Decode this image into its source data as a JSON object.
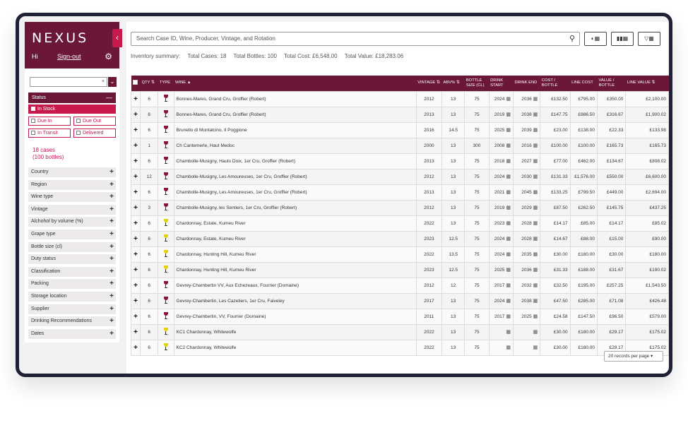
{
  "app": {
    "logo": "NEXUS",
    "greeting": "Hi",
    "signout": "Sign-out"
  },
  "sidebar": {
    "status_label": "Status",
    "status_options": [
      {
        "label": "In Stock",
        "checked": true
      },
      {
        "label": "Due In",
        "checked": false
      },
      {
        "label": "Due Out",
        "checked": false
      },
      {
        "label": "In Transit",
        "checked": false
      },
      {
        "label": "Delivered",
        "checked": false
      }
    ],
    "cases_count": "18 cases",
    "bottles_count": "(100 bottles)",
    "filters": [
      "Country",
      "Region",
      "Wine type",
      "Vintage",
      "Alchohol by volume (%)",
      "Grape type",
      "Bottle size (cl)",
      "Duty status",
      "Classification",
      "Packing",
      "Storage location",
      "Supplier",
      "Drinking Recommendations",
      "Dates"
    ]
  },
  "search": {
    "placeholder": "Search Case ID, Wine, Producer, Vintage, and Rotation"
  },
  "inventory": {
    "label": "Inventory summary:",
    "total_cases": "Total Cases: 18",
    "total_bottles": "Total Bottles: 100",
    "total_cost": "Total Cost: £6,548.00",
    "total_value": "Total Value: £18,283.06"
  },
  "table": {
    "headers": [
      "QTY",
      "TYPE",
      "WINE",
      "VINTAGE",
      "ABV%",
      "BOTTLE SIZE (CL)",
      "DRINK START",
      "DRINK END",
      "COST / BOTTLE",
      "LINE COST",
      "VALUE / BOTTLE",
      "LINE VALUE"
    ],
    "rows": [
      {
        "qty": "6",
        "type": "red",
        "wine": "Bonnes-Mares, Grand Cru, Groffier (Robert)",
        "vintage": "2012",
        "abv": "13",
        "size": "75",
        "start": "2024",
        "end": "2036",
        "cost": "£132.50",
        "line_cost": "£795.00",
        "value": "£350.00",
        "line_value": "£2,100.00"
      },
      {
        "qty": "6",
        "type": "red",
        "wine": "Bonnes-Mares, Grand Cru, Groffier (Robert)",
        "vintage": "2013",
        "abv": "13",
        "size": "75",
        "start": "2019",
        "end": "2038",
        "cost": "£147.75",
        "line_cost": "£886.50",
        "value": "£316.67",
        "line_value": "£1,900.02"
      },
      {
        "qty": "6",
        "type": "red",
        "wine": "Brunello di Montalcino, Il Poggione",
        "vintage": "2016",
        "abv": "14.5",
        "size": "75",
        "start": "2025",
        "end": "2039",
        "cost": "£23.00",
        "line_cost": "£138.00",
        "value": "£22.33",
        "line_value": "£133.98"
      },
      {
        "qty": "1",
        "type": "red",
        "wine": "Ch Cantemerle, Haut Medoc",
        "vintage": "2000",
        "abv": "13",
        "size": "300",
        "start": "2008",
        "end": "2016",
        "cost": "£100.00",
        "line_cost": "£100.00",
        "value": "£165.73",
        "line_value": "£165.73"
      },
      {
        "qty": "6",
        "type": "red",
        "wine": "Chambolle-Musigny, Hauts Doix, 1er Cru, Groffier (Robert)",
        "vintage": "2013",
        "abv": "13",
        "size": "75",
        "start": "2018",
        "end": "2027",
        "cost": "£77.00",
        "line_cost": "£462.00",
        "value": "£134.67",
        "line_value": "£808.02"
      },
      {
        "qty": "12",
        "type": "red",
        "wine": "Chambolle-Musigny, Les Amoureuses, 1er Cru, Groffier (Robert)",
        "vintage": "2012",
        "abv": "13",
        "size": "75",
        "start": "2024",
        "end": "2030",
        "cost": "£131.33",
        "line_cost": "£1,576.00",
        "value": "£550.00",
        "line_value": "£6,600.00"
      },
      {
        "qty": "6",
        "type": "red",
        "wine": "Chambolle-Musigny, Les Amoureuses, 1er Cru, Groffier (Robert)",
        "vintage": "2013",
        "abv": "13",
        "size": "75",
        "start": "2021",
        "end": "2045",
        "cost": "£133.25",
        "line_cost": "£799.50",
        "value": "£449.00",
        "line_value": "£2,694.00"
      },
      {
        "qty": "3",
        "type": "red",
        "wine": "Chambolle-Musigny, les Sentiers, 1er Cru, Groffier (Robert)",
        "vintage": "2012",
        "abv": "13",
        "size": "75",
        "start": "2019",
        "end": "2029",
        "cost": "£87.50",
        "line_cost": "£262.50",
        "value": "£145.75",
        "line_value": "£437.25"
      },
      {
        "qty": "6",
        "type": "white",
        "wine": "Chardonnay, Estate, Kumeu River",
        "vintage": "2022",
        "abv": "13",
        "size": "75",
        "start": "2023",
        "end": "2028",
        "cost": "£14.17",
        "line_cost": "£85.00",
        "value": "£14.17",
        "line_value": "£85.02"
      },
      {
        "qty": "6",
        "type": "white",
        "wine": "Chardonnay, Estate, Kumeu River",
        "vintage": "2023",
        "abv": "12.5",
        "size": "75",
        "start": "2024",
        "end": "2028",
        "cost": "£14.67",
        "line_cost": "£88.00",
        "value": "£15.00",
        "line_value": "£90.00"
      },
      {
        "qty": "6",
        "type": "white",
        "wine": "Chardonnay, Hunting Hill, Kumeu River",
        "vintage": "2022",
        "abv": "13.5",
        "size": "75",
        "start": "2024",
        "end": "2035",
        "cost": "£30.00",
        "line_cost": "£180.00",
        "value": "£30.00",
        "line_value": "£180.00"
      },
      {
        "qty": "6",
        "type": "white",
        "wine": "Chardonnay, Hunting Hill, Kumeu River",
        "vintage": "2023",
        "abv": "12.5",
        "size": "75",
        "start": "2025",
        "end": "2036",
        "cost": "£31.33",
        "line_cost": "£188.00",
        "value": "£31.67",
        "line_value": "£190.02"
      },
      {
        "qty": "6",
        "type": "red",
        "wine": "Gevrey-Chambertin VV, Aux Echezeaux, Fourrier (Domaine)",
        "vintage": "2012",
        "abv": "12",
        "size": "75",
        "start": "2017",
        "end": "2032",
        "cost": "£32.50",
        "line_cost": "£195.00",
        "value": "£257.25",
        "line_value": "£1,543.50"
      },
      {
        "qty": "6",
        "type": "red",
        "wine": "Gevrey-Chambertin, Les Cazetiers, 1er Cru, Faiveley",
        "vintage": "2017",
        "abv": "13",
        "size": "75",
        "start": "2024",
        "end": "2038",
        "cost": "£47.50",
        "line_cost": "£285.00",
        "value": "£71.08",
        "line_value": "£426.48"
      },
      {
        "qty": "6",
        "type": "red",
        "wine": "Gevrey-Chambertin, VV, Fourrier (Domaine)",
        "vintage": "2011",
        "abv": "13",
        "size": "75",
        "start": "2017",
        "end": "2025",
        "cost": "£24.58",
        "line_cost": "£147.50",
        "value": "£96.50",
        "line_value": "£579.00"
      },
      {
        "qty": "6",
        "type": "white",
        "wine": "KC1 Chardonnay, Whitewolfe",
        "vintage": "2022",
        "abv": "13",
        "size": "75",
        "start": "",
        "end": "",
        "cost": "£30.00",
        "line_cost": "£180.00",
        "value": "£29.17",
        "line_value": "£175.02"
      },
      {
        "qty": "6",
        "type": "white",
        "wine": "KC2 Chardonnay, Whitewolfe",
        "vintage": "2022",
        "abv": "13",
        "size": "75",
        "start": "",
        "end": "",
        "cost": "£30.00",
        "line_cost": "£180.00",
        "value": "£29.17",
        "line_value": "£175.02"
      }
    ]
  },
  "pager": {
    "label": "20 records per page"
  },
  "colors": {
    "brand": "#6b1838",
    "accent": "#c8194d",
    "red_wine": "#8a1538",
    "white_wine": "#e3d300"
  }
}
